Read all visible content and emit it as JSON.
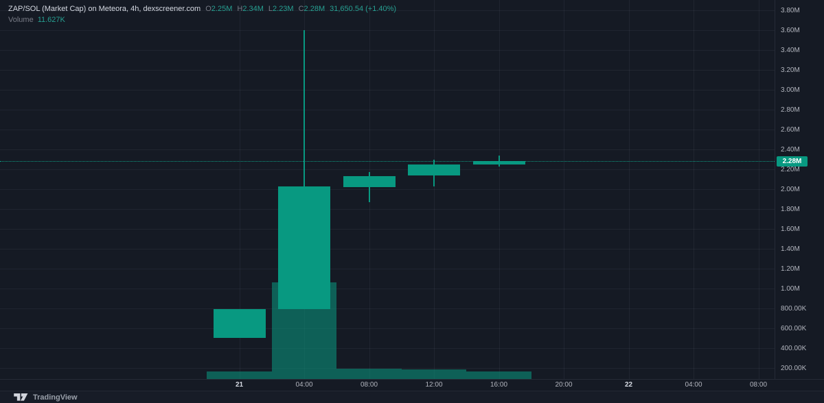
{
  "legend": {
    "title": "ZAP/SOL (Market Cap) on Meteora, 4h, dexscreener.com",
    "ohlc": [
      {
        "label": "O",
        "value": "2.25M"
      },
      {
        "label": "H",
        "value": "2.34M"
      },
      {
        "label": "L",
        "value": "2.23M"
      },
      {
        "label": "C",
        "value": "2.28M"
      }
    ],
    "change": "31,650.54 (+1.40%)",
    "volume_label": "Volume",
    "volume_value": "11.627K"
  },
  "price_axis": {
    "current": {
      "label": "2.28M",
      "value_m": 2.28
    },
    "ticks": [
      {
        "label": "3.80M",
        "v": 3.8
      },
      {
        "label": "3.60M",
        "v": 3.6
      },
      {
        "label": "3.40M",
        "v": 3.4
      },
      {
        "label": "3.20M",
        "v": 3.2
      },
      {
        "label": "3.00M",
        "v": 3.0
      },
      {
        "label": "2.80M",
        "v": 2.8
      },
      {
        "label": "2.60M",
        "v": 2.6
      },
      {
        "label": "2.40M",
        "v": 2.4
      },
      {
        "label": "2.20M",
        "v": 2.2
      },
      {
        "label": "2.00M",
        "v": 2.0
      },
      {
        "label": "1.80M",
        "v": 1.8
      },
      {
        "label": "1.60M",
        "v": 1.6
      },
      {
        "label": "1.40M",
        "v": 1.4
      },
      {
        "label": "1.20M",
        "v": 1.2
      },
      {
        "label": "1.00M",
        "v": 1.0
      },
      {
        "label": "800.00K",
        "v": 0.8
      },
      {
        "label": "600.00K",
        "v": 0.6
      },
      {
        "label": "400.00K",
        "v": 0.4
      },
      {
        "label": "200.00K",
        "v": 0.2
      }
    ]
  },
  "time_axis": {
    "ticks": [
      {
        "label": "21",
        "slot": 0,
        "day": true
      },
      {
        "label": "04:00",
        "slot": 1,
        "day": false
      },
      {
        "label": "08:00",
        "slot": 2,
        "day": false
      },
      {
        "label": "12:00",
        "slot": 3,
        "day": false
      },
      {
        "label": "16:00",
        "slot": 4,
        "day": false
      },
      {
        "label": "20:00",
        "slot": 5,
        "day": false
      },
      {
        "label": "22",
        "slot": 6,
        "day": true
      },
      {
        "label": "04:00",
        "slot": 7,
        "day": false
      },
      {
        "label": "08:00",
        "slot": 8,
        "day": false
      }
    ]
  },
  "chart_data": {
    "type": "candlestick",
    "title": "ZAP/SOL (Market Cap) on Meteora, 4h, dexscreener.com",
    "interval": "4h",
    "units": "market cap, millions",
    "grid": true,
    "legend_position": "top-left",
    "y_axis": {
      "tick_step_m": 0.2,
      "top_tick_m": 3.8,
      "bottom_tick_m": 0.2,
      "visible_range_m": [
        0.09,
        3.9
      ]
    },
    "up_color": "#089981",
    "background": "#151a24",
    "current_price_m": 2.28,
    "candles": [
      {
        "slot": 0,
        "tick": "21",
        "open_m": 0.5,
        "high_m": 0.79,
        "low_m": 0.5,
        "close_m": 0.79
      },
      {
        "slot": 1,
        "tick": "04:00",
        "open_m": 0.79,
        "high_m": 3.6,
        "low_m": 0.79,
        "close_m": 2.03
      },
      {
        "slot": 2,
        "tick": "08:00",
        "open_m": 2.02,
        "high_m": 2.17,
        "low_m": 1.87,
        "close_m": 2.13
      },
      {
        "slot": 3,
        "tick": "12:00",
        "open_m": 2.14,
        "high_m": 2.3,
        "low_m": 2.03,
        "close_m": 2.25
      },
      {
        "slot": 4,
        "tick": "16:00",
        "open_m": 2.25,
        "high_m": 2.34,
        "low_m": 2.23,
        "close_m": 2.28
      }
    ],
    "volumes_k": [
      12.4,
      156.0,
      16.3,
      15.2,
      11.627
    ]
  },
  "attribution": {
    "label": "TradingView"
  }
}
